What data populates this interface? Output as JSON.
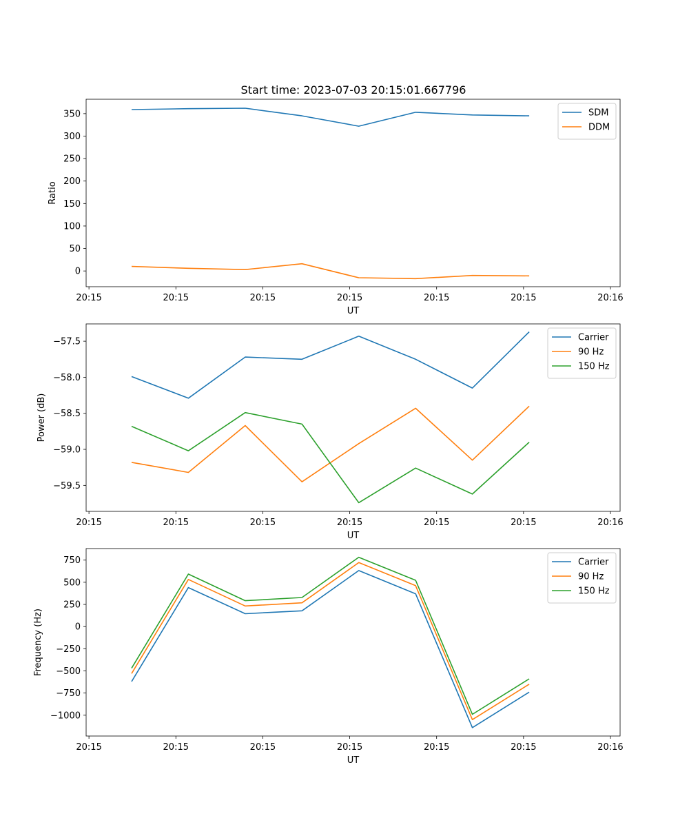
{
  "figure": {
    "title": "Start time: 2023-07-03 20:15:01.667796"
  },
  "chart_data": [
    {
      "type": "line",
      "title": "Start time: 2023-07-03 20:15:01.667796",
      "xlabel": "UT",
      "ylabel": "Ratio",
      "x": [
        0,
        1,
        2,
        3,
        4,
        5,
        6,
        7
      ],
      "xlim": [
        -0.8,
        8.6
      ],
      "ylim": [
        -35,
        382
      ],
      "xticks": {
        "values": [
          -0.75,
          0.78,
          2.31,
          3.84,
          5.37,
          6.9,
          8.43
        ],
        "labels": [
          "20:15",
          "20:15",
          "20:15",
          "20:15",
          "20:15",
          "20:15",
          "20:16"
        ]
      },
      "yticks": {
        "values": [
          0,
          50,
          100,
          150,
          200,
          250,
          300,
          350
        ],
        "labels": [
          "0",
          "50",
          "100",
          "150",
          "200",
          "250",
          "300",
          "350"
        ]
      },
      "legend_position": "top-right",
      "series": [
        {
          "name": "SDM",
          "color": "#1f77b4",
          "values": [
            359,
            361,
            362,
            345,
            322,
            353,
            347,
            345
          ]
        },
        {
          "name": "DDM",
          "color": "#ff7f0e",
          "values": [
            10,
            6,
            3,
            16,
            -15,
            -17,
            -10,
            -11
          ]
        }
      ]
    },
    {
      "type": "line",
      "title": "",
      "xlabel": "UT",
      "ylabel": "Power (dB)",
      "x": [
        0,
        1,
        2,
        3,
        4,
        5,
        6,
        7
      ],
      "xlim": [
        -0.8,
        8.6
      ],
      "ylim": [
        -59.86,
        -57.26
      ],
      "xticks": {
        "values": [
          -0.75,
          0.78,
          2.31,
          3.84,
          5.37,
          6.9,
          8.43
        ],
        "labels": [
          "20:15",
          "20:15",
          "20:15",
          "20:15",
          "20:15",
          "20:15",
          "20:16"
        ]
      },
      "yticks": {
        "values": [
          -59.5,
          -59.0,
          -58.5,
          -58.0,
          -57.5
        ],
        "labels": [
          "−59.5",
          "−59.0",
          "−58.5",
          "−58.0",
          "−57.5"
        ]
      },
      "legend_position": "top-right",
      "series": [
        {
          "name": "Carrier",
          "color": "#1f77b4",
          "values": [
            -57.99,
            -58.29,
            -57.72,
            -57.75,
            -57.43,
            -57.75,
            -58.15,
            -57.37
          ]
        },
        {
          "name": "90 Hz",
          "color": "#ff7f0e",
          "values": [
            -59.18,
            -59.32,
            -58.67,
            -59.45,
            -58.92,
            -58.43,
            -59.15,
            -58.4
          ]
        },
        {
          "name": "150 Hz",
          "color": "#2ca02c",
          "values": [
            -58.68,
            -59.02,
            -58.49,
            -58.65,
            -59.74,
            -59.26,
            -59.62,
            -58.9
          ]
        }
      ]
    },
    {
      "type": "line",
      "title": "",
      "xlabel": "UT",
      "ylabel": "Frequency (Hz)",
      "x": [
        0,
        1,
        2,
        3,
        4,
        5,
        6,
        7
      ],
      "xlim": [
        -0.8,
        8.6
      ],
      "ylim": [
        -1235,
        880
      ],
      "xticks": {
        "values": [
          -0.75,
          0.78,
          2.31,
          3.84,
          5.37,
          6.9,
          8.43
        ],
        "labels": [
          "20:15",
          "20:15",
          "20:15",
          "20:15",
          "20:15",
          "20:15",
          "20:16"
        ]
      },
      "yticks": {
        "values": [
          -1000,
          -750,
          -500,
          -250,
          0,
          250,
          500,
          750
        ],
        "labels": [
          "−1000",
          "−750",
          "−500",
          "−250",
          "0",
          "250",
          "500",
          "750"
        ]
      },
      "legend_position": "top-right",
      "series": [
        {
          "name": "Carrier",
          "color": "#1f77b4",
          "values": [
            -620,
            440,
            145,
            178,
            632,
            370,
            -1140,
            -740
          ]
        },
        {
          "name": "90 Hz",
          "color": "#ff7f0e",
          "values": [
            -530,
            532,
            232,
            268,
            722,
            462,
            -1050,
            -650
          ]
        },
        {
          "name": "150 Hz",
          "color": "#2ca02c",
          "values": [
            -470,
            592,
            292,
            328,
            782,
            522,
            -990,
            -590
          ]
        }
      ]
    }
  ]
}
